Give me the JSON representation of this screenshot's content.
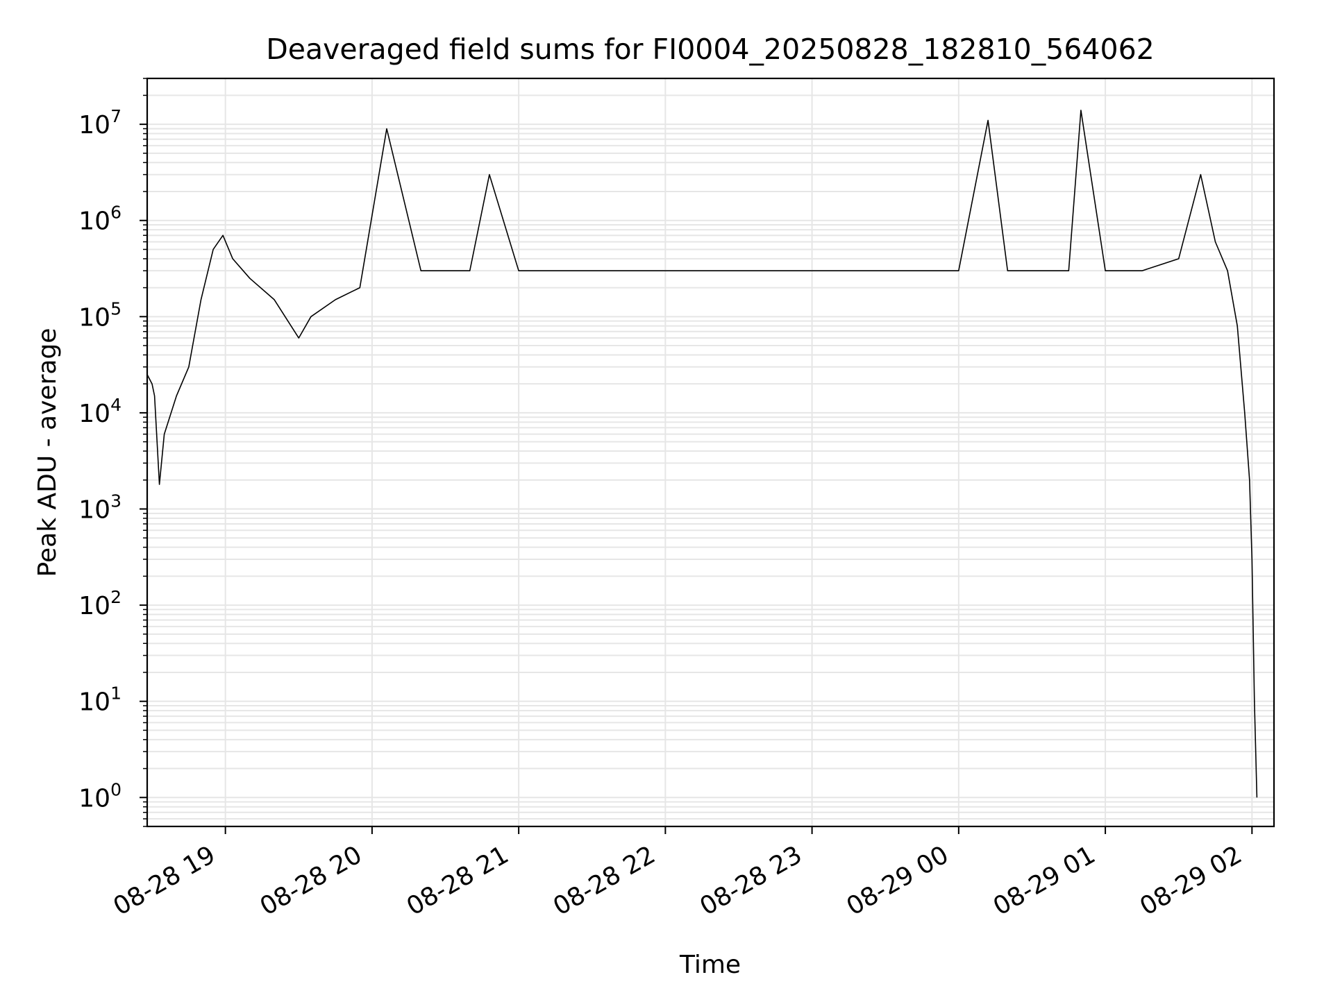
{
  "chart_data": {
    "type": "line",
    "title": "Deaveraged field sums for FI0004_20250828_182810_564062",
    "xlabel": "Time",
    "ylabel": "Peak ADU - average",
    "yscale": "log",
    "xlim": [
      "2025-08-28 18:28",
      "2025-08-29 02:09"
    ],
    "ylim": [
      0.5,
      30000000
    ],
    "grid": true,
    "line_color": "#000000",
    "grid_color": "#e6e6e6",
    "x_ticks": [
      {
        "value": "2025-08-28 19:00",
        "label": "08-28 19"
      },
      {
        "value": "2025-08-28 20:00",
        "label": "08-28 20"
      },
      {
        "value": "2025-08-28 21:00",
        "label": "08-28 21"
      },
      {
        "value": "2025-08-28 22:00",
        "label": "08-28 22"
      },
      {
        "value": "2025-08-28 23:00",
        "label": "08-28 23"
      },
      {
        "value": "2025-08-29 00:00",
        "label": "08-29 00"
      },
      {
        "value": "2025-08-29 01:00",
        "label": "08-29 01"
      },
      {
        "value": "2025-08-29 02:00",
        "label": "08-29 02"
      }
    ],
    "y_ticks": [
      {
        "value": 1,
        "base": "10",
        "exp": "0"
      },
      {
        "value": 10,
        "base": "10",
        "exp": "1"
      },
      {
        "value": 100,
        "base": "10",
        "exp": "2"
      },
      {
        "value": 1000,
        "base": "10",
        "exp": "3"
      },
      {
        "value": 10000,
        "base": "10",
        "exp": "4"
      },
      {
        "value": 100000,
        "base": "10",
        "exp": "5"
      },
      {
        "value": 1000000,
        "base": "10",
        "exp": "6"
      },
      {
        "value": 10000000,
        "base": "10",
        "exp": "7"
      }
    ],
    "series": [
      {
        "x": [
          "2025-08-28 18:28",
          "2025-08-28 18:30",
          "2025-08-28 18:31",
          "2025-08-28 18:33",
          "2025-08-28 18:35",
          "2025-08-28 18:40",
          "2025-08-28 18:45",
          "2025-08-28 18:50",
          "2025-08-28 18:55",
          "2025-08-28 18:59",
          "2025-08-28 19:03",
          "2025-08-28 19:10",
          "2025-08-28 19:20",
          "2025-08-28 19:30",
          "2025-08-28 19:35",
          "2025-08-28 19:45",
          "2025-08-28 19:55",
          "2025-08-28 20:06",
          "2025-08-28 20:20",
          "2025-08-28 20:40",
          "2025-08-28 20:48",
          "2025-08-28 21:00",
          "2025-08-28 21:30",
          "2025-08-28 22:00",
          "2025-08-28 22:30",
          "2025-08-28 23:00",
          "2025-08-28 23:30",
          "2025-08-29 00:00",
          "2025-08-29 00:12",
          "2025-08-29 00:20",
          "2025-08-29 00:45",
          "2025-08-29 00:50",
          "2025-08-29 01:00",
          "2025-08-29 01:15",
          "2025-08-29 01:30",
          "2025-08-29 01:39",
          "2025-08-29 01:45",
          "2025-08-29 01:50",
          "2025-08-29 01:54",
          "2025-08-29 01:57",
          "2025-08-29 01:59",
          "2025-08-29 02:00",
          "2025-08-29 02:01",
          "2025-08-29 02:02"
        ],
        "y": [
          25000,
          20000,
          15000,
          1800,
          6000,
          15000,
          30000,
          150000,
          500000,
          700000,
          400000,
          250000,
          150000,
          60000,
          100000,
          150000,
          200000,
          9000000,
          300000,
          300000,
          3000000,
          300000,
          300000,
          300000,
          300000,
          300000,
          300000,
          300000,
          11000000,
          300000,
          300000,
          14000000,
          300000,
          300000,
          400000,
          3000000,
          600000,
          300000,
          80000,
          10000,
          2000,
          300,
          10,
          1
        ]
      }
    ]
  }
}
